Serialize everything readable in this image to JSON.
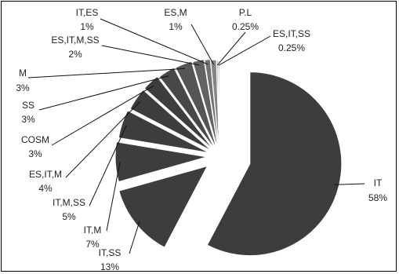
{
  "chart_data": {
    "type": "pie",
    "exploded": true,
    "slices": [
      {
        "label": "IT",
        "value": 58,
        "value_label": "58%",
        "color": "#3d3d3d"
      },
      {
        "label": "IT,SS",
        "value": 13,
        "value_label": "13%",
        "color": "#3d3d3d"
      },
      {
        "label": "IT,M",
        "value": 7,
        "value_label": "7%",
        "color": "#3d3d3d"
      },
      {
        "label": "IT,M,SS",
        "value": 5,
        "value_label": "5%",
        "color": "#3d3d3d"
      },
      {
        "label": "ES,IT,M",
        "value": 4,
        "value_label": "4%",
        "color": "#3d3d3d"
      },
      {
        "label": "COSM",
        "value": 3,
        "value_label": "3%",
        "color": "#3d3d3d"
      },
      {
        "label": "SS",
        "value": 3,
        "value_label": "3%",
        "color": "#484848"
      },
      {
        "label": "M",
        "value": 3,
        "value_label": "3%",
        "color": "#555555"
      },
      {
        "label": "ES,IT,M,SS",
        "value": 2,
        "value_label": "2%",
        "color": "#626262"
      },
      {
        "label": "IT,ES",
        "value": 1,
        "value_label": "1%",
        "color": "#717171"
      },
      {
        "label": "ES,M",
        "value": 1,
        "value_label": "1%",
        "color": "#858585"
      },
      {
        "label": "P.L",
        "value": 0.25,
        "value_label": "0.25%",
        "color": "#9a9a9a"
      },
      {
        "label": "ES,IT,SS",
        "value": 0.25,
        "value_label": "0.25%",
        "color": "#b0b0b0"
      }
    ]
  }
}
